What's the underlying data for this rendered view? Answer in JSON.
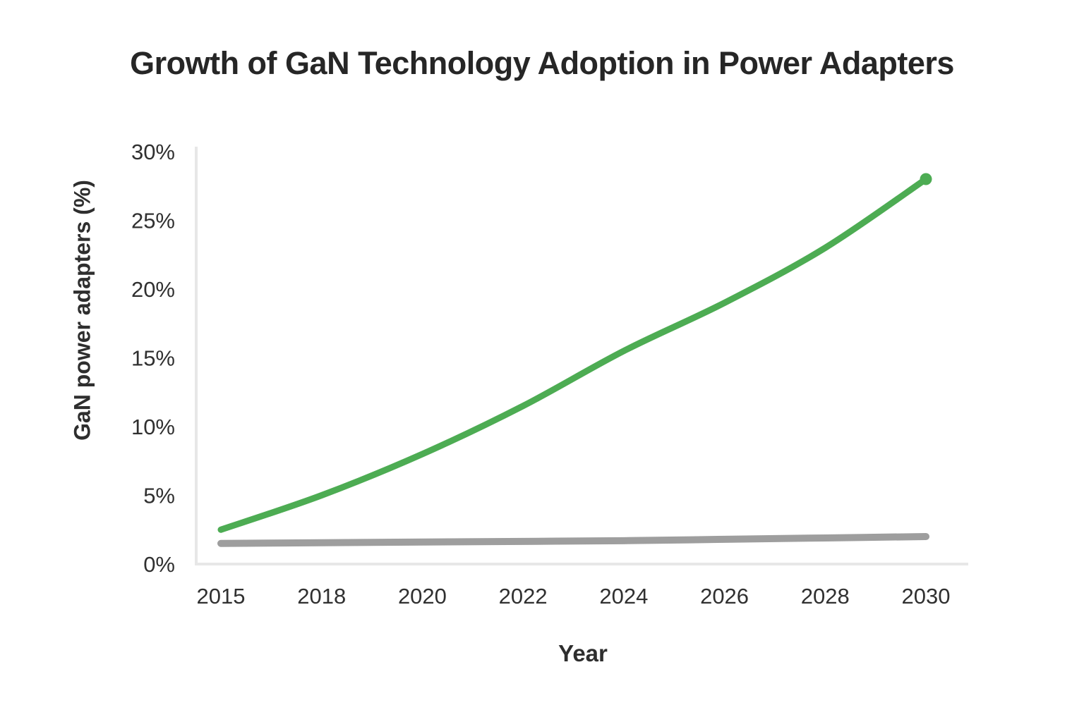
{
  "page": {
    "background": "#ffffff"
  },
  "chart": {
    "title": "Growth of GaN Technology Adoption in Power Adapters",
    "xlabel": "Year",
    "ylabel": "GaN power adapters (%)"
  },
  "chart_data": {
    "type": "line",
    "title": "Growth of GaN Technology Adoption in Power Adapters",
    "xlabel": "Year",
    "ylabel": "GaN power adapters (%)",
    "categories": [
      "2015",
      "2018",
      "2020",
      "2022",
      "2024",
      "2026",
      "2028",
      "2030"
    ],
    "series": [
      {
        "name": "green-line-gan-adoption",
        "color": "#4dac53",
        "line_width": 9,
        "values": [
          2.5,
          5,
          8,
          11.5,
          15.5,
          19,
          23,
          28
        ],
        "end_marker": true,
        "marker_radius": 8.5
      },
      {
        "name": "gray-line-baseline",
        "color": "#9e9e9e",
        "line_width": 10,
        "values": [
          1.5,
          1.55,
          1.6,
          1.65,
          1.7,
          1.8,
          1.9,
          2.0
        ],
        "end_marker": false
      }
    ],
    "ylim": [
      0,
      30
    ],
    "yticks": [
      {
        "value": 0,
        "label": "0%"
      },
      {
        "value": 5,
        "label": "5%"
      },
      {
        "value": 10,
        "label": "10%"
      },
      {
        "value": 15,
        "label": "15%"
      },
      {
        "value": 20,
        "label": "20%"
      },
      {
        "value": 25,
        "label": "25%"
      },
      {
        "value": 30,
        "label": "30%"
      }
    ],
    "grid": false,
    "legend": false,
    "colors": {
      "axis_line": "#e7e7e7",
      "tick_text": "#303030",
      "title_text": "#262626"
    }
  }
}
